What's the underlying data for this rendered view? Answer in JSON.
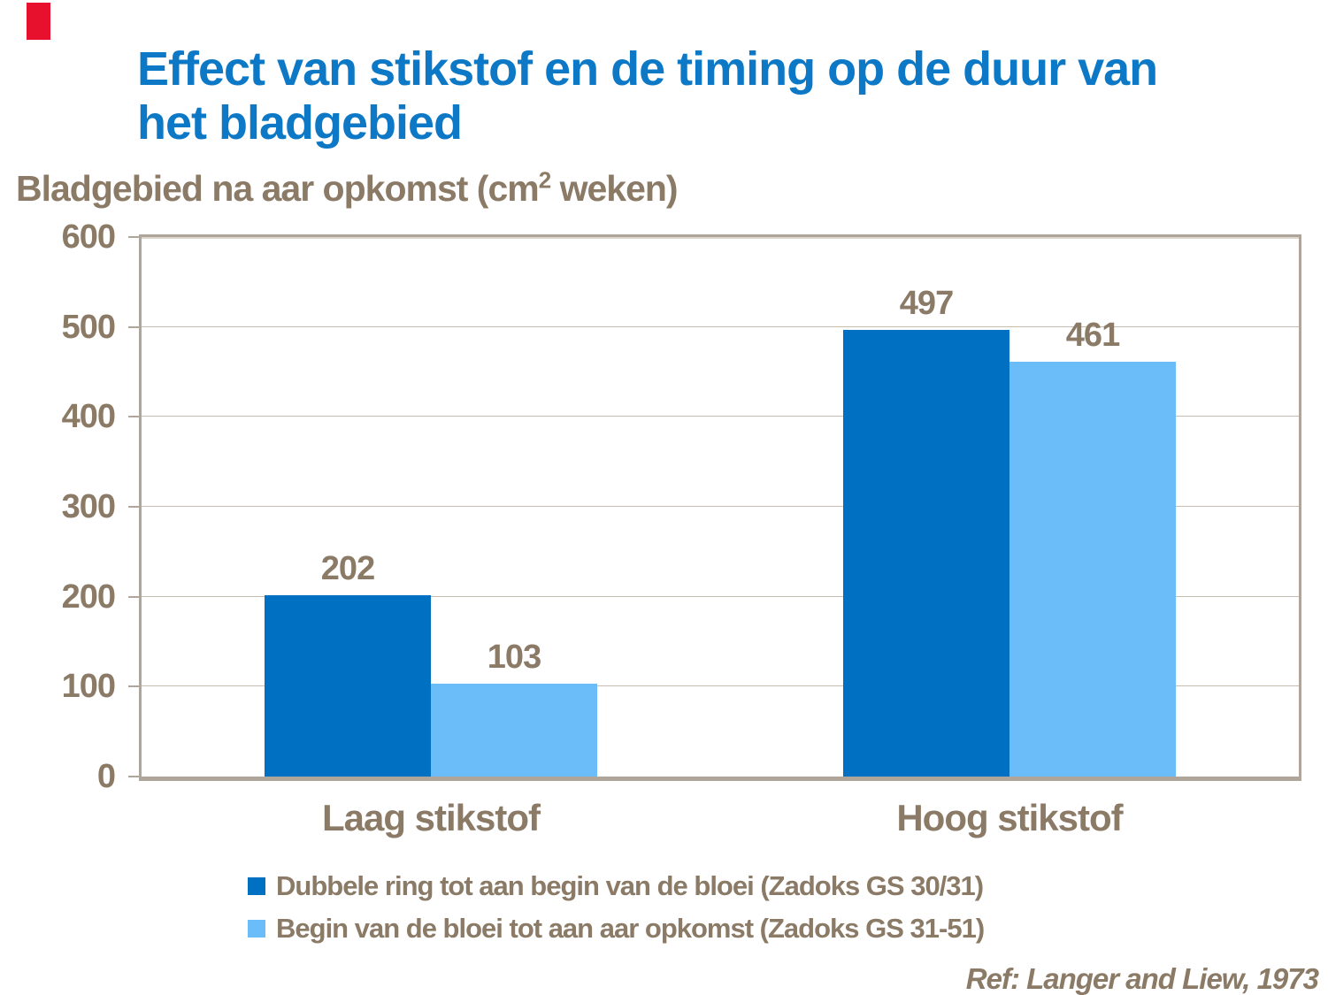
{
  "slide": {
    "accent_mark_color": "#e8112d",
    "title": {
      "line1": "Effect van stikstof en de timing op de duur van",
      "line2": "het bladgebied",
      "color": "#0d79c6"
    },
    "axis_title": {
      "prefix": "Bladgebied na aar opkomst (cm",
      "superscript": "2",
      "suffix": " weken)"
    },
    "text_color": "#8a7a66",
    "ref_note": "Ref: Langer and Liew, 1973"
  },
  "chart_data": {
    "type": "bar",
    "title": "Effect van stikstof en de timing op de duur van het bladgebied",
    "ylabel": "Bladgebied na aar opkomst (cm2 weken)",
    "xlabel": "",
    "categories": [
      "Laag stikstof",
      "Hoog stikstof"
    ],
    "series": [
      {
        "name": "Dubbele ring tot aan begin van de bloei (Zadoks GS 30/31)",
        "color": "#0071c2",
        "values": [
          202,
          497
        ]
      },
      {
        "name": "Begin van de bloei tot aan aar opkomst (Zadoks GS 31-51)",
        "color": "#6abdf9",
        "values": [
          103,
          461
        ]
      }
    ],
    "ylim": [
      0,
      600
    ],
    "yticks": [
      0,
      100,
      200,
      300,
      400,
      500,
      600
    ],
    "grid": true,
    "data_labels": true,
    "legend_position": "bottom"
  }
}
